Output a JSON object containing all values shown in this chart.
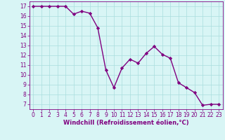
{
  "x": [
    0,
    1,
    2,
    3,
    4,
    5,
    6,
    7,
    8,
    9,
    10,
    11,
    12,
    13,
    14,
    15,
    16,
    17,
    18,
    19,
    20,
    21,
    22,
    23
  ],
  "y": [
    17,
    17,
    17,
    17,
    17,
    16.2,
    16.5,
    16.3,
    14.8,
    10.5,
    8.7,
    10.7,
    11.6,
    11.2,
    12.2,
    12.9,
    12.1,
    11.7,
    9.2,
    8.7,
    8.2,
    6.9,
    7.0,
    7.0
  ],
  "line_color": "#800080",
  "marker": "D",
  "markersize": 2.2,
  "linewidth": 1.0,
  "bg_color": "#d8f5f5",
  "grid_color": "#aadddd",
  "xlabel": "Windchill (Refroidissement éolien,°C)",
  "xlabel_color": "#800080",
  "xlabel_fontsize": 6.0,
  "tick_color": "#800080",
  "tick_fontsize": 5.5,
  "ylim": [
    6.5,
    17.5
  ],
  "xlim": [
    -0.5,
    23.5
  ],
  "yticks": [
    7,
    8,
    9,
    10,
    11,
    12,
    13,
    14,
    15,
    16,
    17
  ],
  "xticks": [
    0,
    1,
    2,
    3,
    4,
    5,
    6,
    7,
    8,
    9,
    10,
    11,
    12,
    13,
    14,
    15,
    16,
    17,
    18,
    19,
    20,
    21,
    22,
    23
  ]
}
